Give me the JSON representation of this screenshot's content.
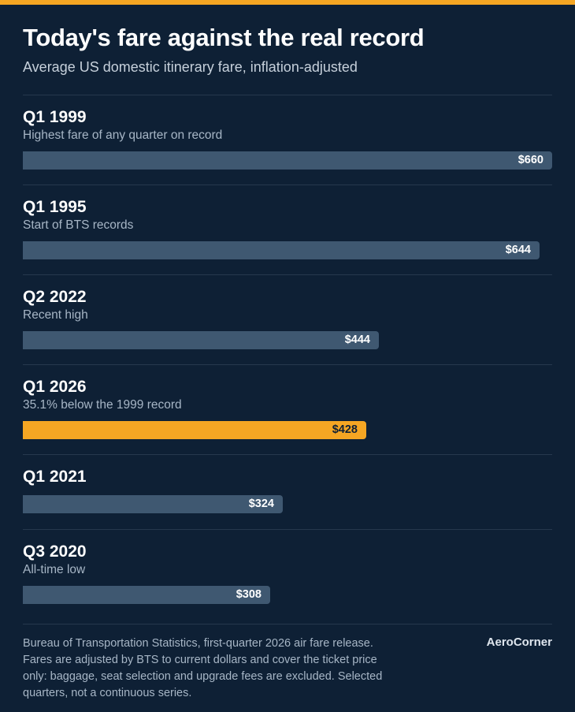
{
  "header": {
    "title": "Today's fare against the real record",
    "subtitle": "Average US domestic itinerary fare, inflation-adjusted"
  },
  "chart_data": {
    "type": "bar",
    "orientation": "horizontal",
    "title": "Today's fare against the real record",
    "subtitle": "Average US domestic itinerary fare, inflation-adjusted",
    "xlim": [
      0,
      660
    ],
    "grid": false,
    "categories": [
      "Q1 1999",
      "Q1 1995",
      "Q2 2022",
      "Q1 2026",
      "Q1 2021",
      "Q3 2020"
    ],
    "notes": [
      "Highest fare of any quarter on record",
      "Start of BTS records",
      "Recent high",
      "35.1% below the 1999 record",
      "",
      "All-time low"
    ],
    "values": [
      660,
      644,
      444,
      428,
      324,
      308
    ],
    "value_labels": [
      "$660",
      "$644",
      "$444",
      "$428",
      "$324",
      "$308"
    ],
    "highlight_index": 3
  },
  "footer": {
    "source": "Bureau of Transportation Statistics, first-quarter 2026 air fare release. Fares are adjusted by BTS to current dollars and cover the ticket price only: baggage, seat selection and upgrade fees are excluded. Selected quarters, not a continuous series.",
    "brand": "AeroCorner"
  },
  "colors": {
    "background": "#0e2035",
    "bar": "#3f5871",
    "highlight": "#f5a623",
    "divider": "#26384d"
  }
}
